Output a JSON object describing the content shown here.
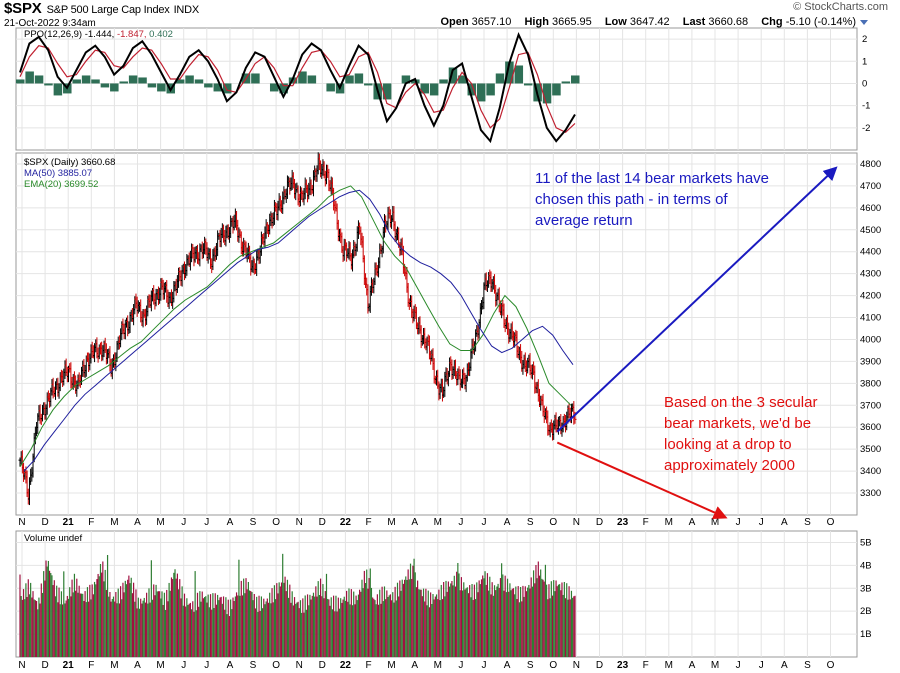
{
  "header": {
    "symbol": "$SPX",
    "name": "S&P 500 Large Cap Index",
    "exchange": "INDX",
    "timestamp": "21-Oct-2022 9:34am",
    "brand": "© StockCharts.com",
    "open_label": "Open",
    "open": "3657.10",
    "high_label": "High",
    "high": "3665.95",
    "low_label": "Low",
    "low": "3647.42",
    "last_label": "Last",
    "last": "3660.68",
    "chg_label": "Chg",
    "chg": "-5.10 (-0.14%)",
    "chg_arrow_icon": "down-triangle-icon"
  },
  "ppo_legend": {
    "label": "PPO(12,26,9)",
    "v1": "-1.444,",
    "v2": "-1.847,",
    "v3": "0.402"
  },
  "price_legend": {
    "main": "$SPX (Daily) 3660.68",
    "ma50": "MA(50) 3885.07",
    "ema20": "EMA(20) 3699.52"
  },
  "volume_legend": {
    "label": "Volume undef"
  },
  "annotations": {
    "bull_text": "11 of the last 14 bear markets have chosen this path - in terms of average return",
    "bear_text": "Based on the 3 secular bear markets, we'd be looking at a drop to approximately 2000"
  },
  "colors": {
    "up": "#000000",
    "down": "#cc0000",
    "ma50": "#1f1f9e",
    "ema20": "#2a8a2a",
    "ppo_line": "#000000",
    "ppo_signal": "#c02030",
    "ppo_hist": "#2f6f56",
    "vol_up": "#2e7d32",
    "vol_down": "#a01040",
    "bull_arrow": "#1a1ac0",
    "bear_arrow": "#e01010",
    "grid": "#e4e4e4"
  },
  "chart_data": [
    {
      "type": "line",
      "panel": "PPO",
      "title": "PPO(12,26,9)",
      "ylim": [
        -3,
        2.5
      ],
      "yticks": [
        "2",
        "1",
        "0",
        "-1",
        "-2"
      ],
      "series": [
        {
          "name": "PPO",
          "values": [
            0.5,
            1.8,
            2.1,
            1.5,
            0.3,
            -0.2,
            0.6,
            1.4,
            1.7,
            1.2,
            0.4,
            0.8,
            1.6,
            1.9,
            1.3,
            0.5,
            -0.3,
            0.4,
            1.2,
            1.5,
            1.0,
            0.2,
            -0.8,
            -0.4,
            0.7,
            1.4,
            1.2,
            0.3,
            -0.6,
            0.2,
            1.3,
            1.8,
            1.5,
            0.6,
            -0.2,
            0.8,
            1.7,
            1.3,
            -0.3,
            -1.7,
            -1.1,
            0.0,
            0.2,
            -1.0,
            -1.9,
            -1.0,
            0.6,
            0.9,
            -0.6,
            -2.1,
            -2.6,
            -1.1,
            0.9,
            2.2,
            1.3,
            -0.5,
            -2.0,
            -2.6,
            -2.1,
            -1.4
          ]
        },
        {
          "name": "Signal",
          "values": [
            0.3,
            1.2,
            1.7,
            1.6,
            0.9,
            0.3,
            0.4,
            1.0,
            1.5,
            1.4,
            0.8,
            0.7,
            1.2,
            1.6,
            1.5,
            0.9,
            0.2,
            0.2,
            0.8,
            1.3,
            1.2,
            0.6,
            -0.3,
            -0.4,
            0.2,
            0.9,
            1.2,
            0.7,
            -0.1,
            -0.1,
            0.7,
            1.4,
            1.5,
            1.0,
            0.3,
            0.4,
            1.2,
            1.4,
            0.5,
            -0.9,
            -1.1,
            -0.4,
            0.0,
            -0.5,
            -1.3,
            -1.2,
            -0.2,
            0.5,
            0.0,
            -1.2,
            -2.0,
            -1.6,
            -0.2,
            1.3,
            1.4,
            0.4,
            -1.0,
            -2.0,
            -2.2,
            -1.8
          ]
        }
      ]
    },
    {
      "type": "line",
      "panel": "Price",
      "title": "$SPX (Daily) 3660.68",
      "ylim": [
        3200,
        4850
      ],
      "yticks": [
        "4800",
        "4700",
        "4600",
        "4500",
        "4400",
        "4300",
        "4200",
        "4100",
        "4000",
        "3900",
        "3800",
        "3700",
        "3600",
        "3500",
        "3400",
        "3300"
      ],
      "x_ticks": [
        "N",
        "D",
        "21",
        "F",
        "M",
        "A",
        "M",
        "J",
        "J",
        "A",
        "S",
        "O",
        "N",
        "D",
        "22",
        "F",
        "M",
        "A",
        "M",
        "J",
        "J",
        "A",
        "S",
        "O",
        "N",
        "D",
        "23",
        "F",
        "M",
        "A",
        "M",
        "J",
        "J",
        "A",
        "S",
        "O"
      ],
      "series": [
        {
          "name": "$SPX (Daily)",
          "values": [
            3450,
            3300,
            3610,
            3700,
            3760,
            3830,
            3850,
            3780,
            3910,
            3940,
            3970,
            3870,
            4000,
            4080,
            4150,
            4110,
            4190,
            4230,
            4190,
            4250,
            4350,
            4380,
            4420,
            4360,
            4450,
            4500,
            4530,
            4420,
            4330,
            4400,
            4540,
            4580,
            4680,
            4710,
            4640,
            4700,
            4780,
            4770,
            4600,
            4400,
            4380,
            4500,
            4170,
            4300,
            4520,
            4560,
            4400,
            4180,
            4050,
            4000,
            3850,
            3750,
            3900,
            3800,
            3850,
            4000,
            4230,
            4280,
            4130,
            4050,
            3960,
            3880,
            3850,
            3680,
            3600,
            3600,
            3650,
            3660
          ]
        },
        {
          "name": "MA(50)",
          "values": [
            3400,
            3450,
            3520,
            3580,
            3640,
            3700,
            3750,
            3790,
            3830,
            3870,
            3910,
            3950,
            3990,
            4030,
            4070,
            4110,
            4150,
            4190,
            4230,
            4270,
            4310,
            4350,
            4380,
            4410,
            4420,
            4440,
            4480,
            4520,
            4560,
            4590,
            4620,
            4650,
            4670,
            4680,
            4640,
            4570,
            4480,
            4420,
            4380,
            4350,
            4330,
            4300,
            4260,
            4200,
            4120,
            4040,
            3970,
            3940,
            3960,
            4000,
            4040,
            4060,
            4020,
            3950,
            3885
          ]
        },
        {
          "name": "EMA(20)",
          "values": [
            3420,
            3500,
            3600,
            3680,
            3740,
            3790,
            3820,
            3850,
            3880,
            3920,
            3960,
            3990,
            4040,
            4090,
            4140,
            4180,
            4210,
            4240,
            4290,
            4340,
            4380,
            4400,
            4420,
            4440,
            4480,
            4520,
            4560,
            4600,
            4650,
            4680,
            4700,
            4650,
            4550,
            4450,
            4380,
            4330,
            4240,
            4150,
            4060,
            3980,
            3950,
            3950,
            4020,
            4120,
            4200,
            4150,
            4050,
            3930,
            3800,
            3750,
            3700
          ]
        }
      ]
    },
    {
      "type": "bar",
      "panel": "Volume",
      "title": "Volume undef",
      "ylim": [
        0,
        5.5
      ],
      "yticks": [
        "5B",
        "4B",
        "3B",
        "2B",
        "1B"
      ],
      "values": [
        2.5,
        3.1,
        2.2,
        4.2,
        2.8,
        2.4,
        3.3,
        2.6,
        2.9,
        4.0,
        2.5,
        2.7,
        3.5,
        2.3,
        2.6,
        3.0,
        2.4,
        3.8,
        2.5,
        2.2,
        2.7,
        2.4,
        2.6,
        2.1,
        2.9,
        3.2,
        2.3,
        2.4,
        2.8,
        3.4,
        2.5,
        2.2,
        2.6,
        3.1,
        2.4,
        2.3,
        2.7,
        2.5,
        3.6,
        2.4,
        2.8,
        2.6,
        3.2,
        3.8,
        2.9,
        2.5,
        2.7,
        3.1,
        3.4,
        3.0,
        2.8,
        3.6,
        2.9,
        3.3,
        3.0,
        2.7,
        3.1,
        3.9,
        2.8,
        3.2,
        2.9,
        2.6
      ]
    },
    {
      "type": "line",
      "panel": "Projection",
      "series": [
        {
          "name": "Bull path",
          "x": [
            "Oct 2022",
            "Oct 2023"
          ],
          "values": [
            3580,
            4780
          ]
        },
        {
          "name": "Bear path",
          "x": [
            "Oct 2022",
            "May 2023"
          ],
          "values": [
            3530,
            3190
          ]
        }
      ]
    }
  ]
}
